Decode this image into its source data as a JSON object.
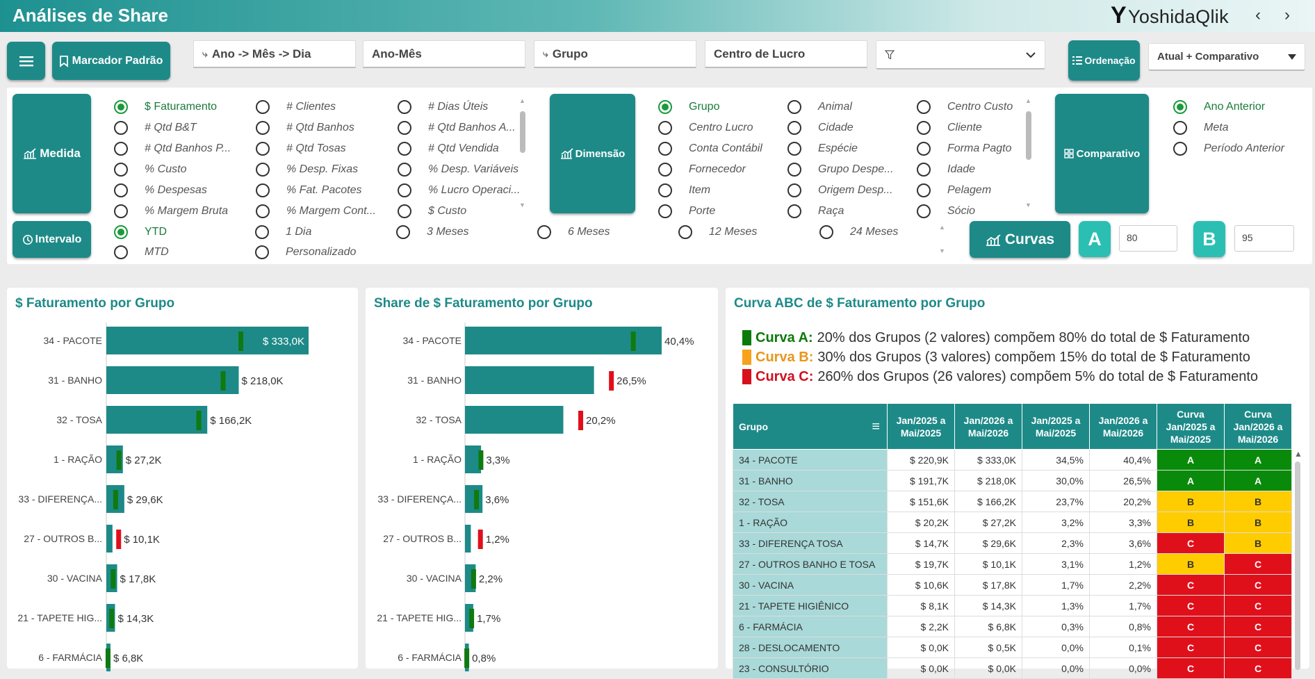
{
  "header": {
    "title": "Análises de Share",
    "logo_mark": "Y",
    "logo_text": "YoshidaQlik",
    "nav_prev": "‹",
    "nav_next": "›"
  },
  "toolbar": {
    "menu_icon": "menu-icon",
    "bookmark_label": "Marcador Padrão",
    "fields": [
      "Ano -> Mês -> Dia",
      "Ano-Mês",
      "Grupo",
      "Centro de Lucro"
    ],
    "filter_value": "",
    "sort_label": "Ordenação",
    "view_select": "Atual + Comparativo"
  },
  "medida": {
    "button": "Medida",
    "options": [
      [
        "$ Faturamento",
        "# Clientes",
        "# Dias Úteis"
      ],
      [
        "# Qtd B&T",
        "# Qtd Banhos",
        "# Qtd Banhos A..."
      ],
      [
        "# Qtd Banhos P...",
        "# Qtd Tosas",
        "# Qtd Vendida"
      ],
      [
        "% Custo",
        "% Desp. Fixas",
        "% Desp. Variáveis"
      ],
      [
        "% Despesas",
        "% Fat. Pacotes",
        "% Lucro Operaci..."
      ],
      [
        "% Margem Bruta",
        "% Margem Cont...",
        "$ Custo"
      ]
    ],
    "selected": "$ Faturamento"
  },
  "dimensao": {
    "button": "Dimensão",
    "options": [
      [
        "Grupo",
        "Animal",
        "Centro Custo"
      ],
      [
        "Centro Lucro",
        "Cidade",
        "Cliente"
      ],
      [
        "Conta Contábil",
        "Espécie",
        "Forma Pagto"
      ],
      [
        "Fornecedor",
        "Grupo Despe...",
        "Idade"
      ],
      [
        "Item",
        "Origem Desp...",
        "Pelagem"
      ],
      [
        "Porte",
        "Raça",
        "Sócio"
      ]
    ],
    "selected": "Grupo"
  },
  "comparativo": {
    "button": "Comparativo",
    "options": [
      "Ano Anterior",
      "Meta",
      "Período Anterior"
    ],
    "selected": "Ano Anterior"
  },
  "intervalo": {
    "button": "Intervalo",
    "options": [
      [
        "YTD",
        "1 Dia",
        "3 Meses",
        "6 Meses",
        "12 Meses",
        "24 Meses"
      ],
      [
        "MTD",
        "Personalizado"
      ]
    ],
    "selected": "YTD"
  },
  "curvas": {
    "button": "Curvas",
    "a_label": "A",
    "a_value": "80",
    "b_label": "B",
    "b_value": "95"
  },
  "chart1": {
    "title": "$ Faturamento por Grupo"
  },
  "chart2": {
    "title": "Share de $ Faturamento por Grupo"
  },
  "chart_data": [
    {
      "type": "bar",
      "title": "$ Faturamento por Grupo",
      "categories": [
        "34 - PACOTE",
        "31 - BANHO",
        "32 - TOSA",
        "1 - RAÇÃO",
        "33 - DIFERENÇA...",
        "27 - OUTROS B...",
        "30 - VACINA",
        "21 - TAPETE HIG...",
        "6 - FARMÁCIA"
      ],
      "series": [
        {
          "values": [
            333.0,
            218.0,
            166.2,
            27.2,
            29.6,
            10.1,
            17.8,
            14.3,
            6.8
          ]
        },
        {
          "values": [
            220.9,
            191.7,
            151.6,
            20.2,
            14.7,
            19.7,
            10.6,
            8.1,
            2.2
          ]
        }
      ],
      "labels": [
        "$ 333,0K",
        "$ 218,0K",
        "$ 166,2K",
        "$ 27,2K",
        "$ 29,6K",
        "$ 10,1K",
        "$ 17,8K",
        "$ 14,3K",
        "$ 6,8K"
      ],
      "colors": {
        "bar": "#1d8a88",
        "up": "#0f7a0f",
        "down": "#e0101b"
      },
      "xlim": [
        0,
        333.0
      ]
    },
    {
      "type": "bar",
      "title": "Share de $ Faturamento por Grupo",
      "categories": [
        "34 - PACOTE",
        "31 - BANHO",
        "32 - TOSA",
        "1 - RAÇÃO",
        "33 - DIFERENÇA...",
        "27 - OUTROS B...",
        "30 - VACINA",
        "21 - TAPETE HIG...",
        "6 - FARMÁCIA"
      ],
      "series": [
        {
          "values": [
            40.4,
            26.5,
            20.2,
            3.3,
            3.6,
            1.2,
            2.2,
            1.7,
            0.8
          ]
        },
        {
          "values": [
            34.5,
            30.0,
            23.7,
            3.2,
            2.3,
            3.1,
            1.7,
            1.3,
            0.3
          ]
        }
      ],
      "labels": [
        "40,4%",
        "26,5%",
        "20,2%",
        "3,3%",
        "3,6%",
        "1,2%",
        "2,2%",
        "1,7%",
        "0,8%"
      ],
      "colors": {
        "bar": "#1d8a88",
        "up": "#0f7a0f",
        "down": "#e0101b"
      },
      "xlim": [
        0,
        40.4
      ]
    }
  ],
  "abc": {
    "title": "Curva ABC de $ Faturamento por Grupo",
    "legend": [
      {
        "label": "Curva A:",
        "text": "20% dos Grupos (2 valores) compõem 80% do total de $ Faturamento",
        "color": "#0a7a0a",
        "label_color": "#0a7a0a"
      },
      {
        "label": "Curva B:",
        "text": "30% dos Grupos (3 valores) compõem 15% do total de $ Faturamento",
        "color": "#f7a21a",
        "label_color": "#e8961a"
      },
      {
        "label": "Curva C:",
        "text": "260% dos Grupos (26 valores) compõem 5% do total de $ Faturamento",
        "color": "#d8101b",
        "label_color": "#d01020"
      }
    ],
    "columns": [
      "Grupo",
      "Jan/2025 a Mai/2025",
      "Jan/2026 a Mai/2026",
      "Jan/2025 a Mai/2025",
      "Jan/2026 a Mai/2026",
      "Curva Jan/2025 a Mai/2025",
      "Curva Jan/2026 a Mai/2026"
    ],
    "rows": [
      [
        "34 - PACOTE",
        "$ 220,9K",
        "$ 333,0K",
        "34,5%",
        "40,4%",
        "A",
        "A"
      ],
      [
        "31 - BANHO",
        "$ 191,7K",
        "$ 218,0K",
        "30,0%",
        "26,5%",
        "A",
        "A"
      ],
      [
        "32 - TOSA",
        "$ 151,6K",
        "$ 166,2K",
        "23,7%",
        "20,2%",
        "B",
        "B"
      ],
      [
        "1 - RAÇÃO",
        "$ 20,2K",
        "$ 27,2K",
        "3,2%",
        "3,3%",
        "B",
        "B"
      ],
      [
        "33 - DIFERENÇA TOSA",
        "$ 14,7K",
        "$ 29,6K",
        "2,3%",
        "3,6%",
        "C",
        "B"
      ],
      [
        "27 - OUTROS BANHO E TOSA",
        "$ 19,7K",
        "$ 10,1K",
        "3,1%",
        "1,2%",
        "B",
        "C"
      ],
      [
        "30 - VACINA",
        "$ 10,6K",
        "$ 17,8K",
        "1,7%",
        "2,2%",
        "C",
        "C"
      ],
      [
        "21 - TAPETE HIGIÊNICO",
        "$ 8,1K",
        "$ 14,3K",
        "1,3%",
        "1,7%",
        "C",
        "C"
      ],
      [
        "6 - FARMÁCIA",
        "$ 2,2K",
        "$ 6,8K",
        "0,3%",
        "0,8%",
        "C",
        "C"
      ],
      [
        "28 - DESLOCAMENTO",
        "$ 0,0K",
        "$ 0,5K",
        "0,0%",
        "0,1%",
        "C",
        "C"
      ],
      [
        "23 - CONSULTÓRIO",
        "$ 0,0K",
        "$ 0,0K",
        "0,0%",
        "0,0%",
        "C",
        "C"
      ]
    ],
    "curve_colors": {
      "A": "#0a8a0a",
      "B": "#ffcc00",
      "C": "#e0101b"
    }
  }
}
